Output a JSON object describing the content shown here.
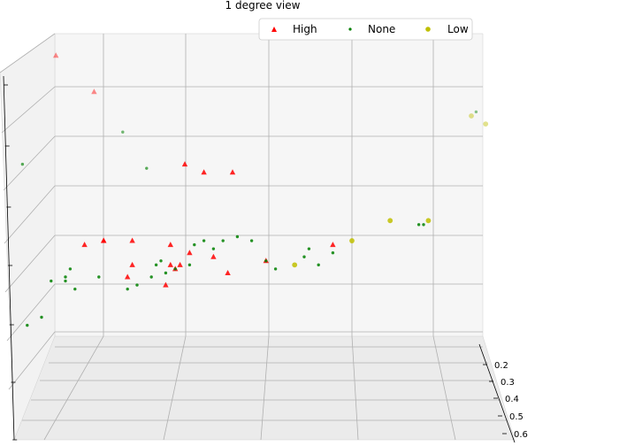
{
  "chart_data": {
    "type": "scatter",
    "title": "1 degree view",
    "projection": "3d",
    "visible_axis": {
      "ticks": [
        "0.2",
        "0.3",
        "0.4",
        "0.5",
        "0.6"
      ]
    },
    "legend": {
      "placement": "top-right",
      "entries": [
        {
          "label": "High",
          "marker": "triangle",
          "color": "#ff0000"
        },
        {
          "label": "None",
          "marker": "circle-small",
          "color": "#008000"
        },
        {
          "label": "Low",
          "marker": "circle",
          "color": "#bfbf00"
        }
      ]
    },
    "series": [
      {
        "name": "High",
        "color": "#ff0000",
        "marker": "triangle",
        "points": [
          {
            "x": 0.08,
            "y": 0.05,
            "a": 0.45
          },
          {
            "x": 0.16,
            "y": 0.14,
            "a": 0.45
          },
          {
            "x": 0.23,
            "y": 0.6,
            "a": 0.85
          },
          {
            "x": 0.24,
            "y": 0.57,
            "a": 0.85
          },
          {
            "x": 0.24,
            "y": 0.51,
            "a": 0.85
          },
          {
            "x": 0.14,
            "y": 0.52,
            "a": 0.85
          },
          {
            "x": 0.18,
            "y": 0.51,
            "a": 0.85
          },
          {
            "x": 0.18,
            "y": 0.51,
            "a": 0.85
          },
          {
            "x": 0.32,
            "y": 0.57,
            "a": 0.85
          },
          {
            "x": 0.36,
            "y": 0.54,
            "a": 0.85
          },
          {
            "x": 0.41,
            "y": 0.55,
            "a": 0.85
          },
          {
            "x": 0.32,
            "y": 0.52,
            "a": 0.85
          },
          {
            "x": 0.35,
            "y": 0.32,
            "a": 0.85
          },
          {
            "x": 0.39,
            "y": 0.34,
            "a": 0.85
          },
          {
            "x": 0.31,
            "y": 0.62,
            "a": 0.85
          },
          {
            "x": 0.33,
            "y": 0.58,
            "a": 0.85
          },
          {
            "x": 0.34,
            "y": 0.57,
            "a": 0.85
          },
          {
            "x": 0.44,
            "y": 0.59,
            "a": 0.85
          },
          {
            "x": 0.45,
            "y": 0.34,
            "a": 0.85
          },
          {
            "x": 0.52,
            "y": 0.56,
            "a": 0.85
          },
          {
            "x": 0.66,
            "y": 0.52,
            "a": 0.85
          }
        ]
      },
      {
        "name": "None",
        "color": "#008000",
        "marker": "circle-small",
        "points": [
          {
            "x": 0.01,
            "y": 0.32,
            "a": 0.65
          },
          {
            "x": 0.02,
            "y": 0.72,
            "a": 0.85
          },
          {
            "x": 0.22,
            "y": 0.24,
            "a": 0.55
          },
          {
            "x": 0.27,
            "y": 0.33,
            "a": 0.65
          },
          {
            "x": 0.07,
            "y": 0.61,
            "a": 0.85
          },
          {
            "x": 0.1,
            "y": 0.6,
            "a": 0.85
          },
          {
            "x": 0.11,
            "y": 0.58,
            "a": 0.85
          },
          {
            "x": 0.1,
            "y": 0.61,
            "a": 0.85
          },
          {
            "x": 0.17,
            "y": 0.6,
            "a": 0.85
          },
          {
            "x": 0.23,
            "y": 0.63,
            "a": 0.85
          },
          {
            "x": 0.25,
            "y": 0.62,
            "a": 0.85
          },
          {
            "x": 0.28,
            "y": 0.6,
            "a": 0.85
          },
          {
            "x": 0.29,
            "y": 0.57,
            "a": 0.85
          },
          {
            "x": 0.3,
            "y": 0.56,
            "a": 0.85
          },
          {
            "x": 0.31,
            "y": 0.59,
            "a": 0.85
          },
          {
            "x": 0.33,
            "y": 0.58,
            "a": 0.85
          },
          {
            "x": 0.36,
            "y": 0.57,
            "a": 0.85
          },
          {
            "x": 0.37,
            "y": 0.52,
            "a": 0.85
          },
          {
            "x": 0.39,
            "y": 0.51,
            "a": 0.85
          },
          {
            "x": 0.41,
            "y": 0.53,
            "a": 0.85
          },
          {
            "x": 0.43,
            "y": 0.51,
            "a": 0.85
          },
          {
            "x": 0.46,
            "y": 0.5,
            "a": 0.85
          },
          {
            "x": 0.49,
            "y": 0.51,
            "a": 0.85
          },
          {
            "x": 0.52,
            "y": 0.56,
            "a": 0.85
          },
          {
            "x": 0.54,
            "y": 0.58,
            "a": 0.85
          },
          {
            "x": 0.6,
            "y": 0.55,
            "a": 0.85
          },
          {
            "x": 0.61,
            "y": 0.53,
            "a": 0.85
          },
          {
            "x": 0.63,
            "y": 0.57,
            "a": 0.85
          },
          {
            "x": 0.66,
            "y": 0.54,
            "a": 0.85
          },
          {
            "x": 0.84,
            "y": 0.47,
            "a": 0.85
          },
          {
            "x": 0.85,
            "y": 0.47,
            "a": 0.85
          },
          {
            "x": 0.96,
            "y": 0.19,
            "a": 0.45
          },
          {
            "x": 0.05,
            "y": 0.7,
            "a": 0.85
          },
          {
            "x": 0.12,
            "y": 0.63,
            "a": 0.85
          }
        ]
      },
      {
        "name": "Low",
        "color": "#bfbf00",
        "marker": "circle",
        "points": [
          {
            "x": 0.58,
            "y": 0.57,
            "a": 0.85
          },
          {
            "x": 0.7,
            "y": 0.51,
            "a": 0.85
          },
          {
            "x": 0.78,
            "y": 0.46,
            "a": 0.85
          },
          {
            "x": 0.86,
            "y": 0.46,
            "a": 0.85
          },
          {
            "x": 0.95,
            "y": 0.2,
            "a": 0.45
          },
          {
            "x": 0.98,
            "y": 0.22,
            "a": 0.45
          }
        ]
      }
    ]
  }
}
